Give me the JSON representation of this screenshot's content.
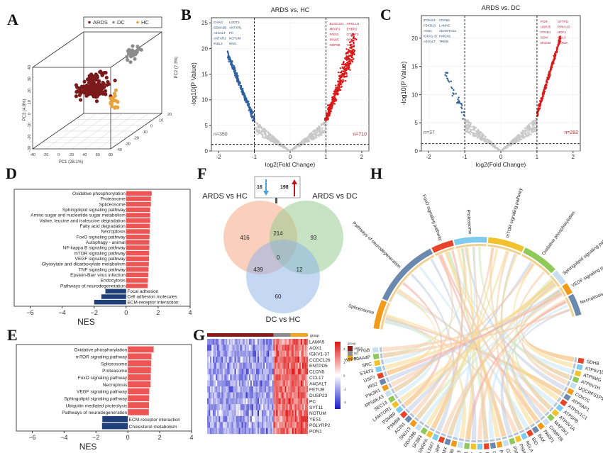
{
  "panels": {
    "A": "A",
    "B": "B",
    "C": "C",
    "D": "D",
    "E": "E",
    "F": "F",
    "G": "G",
    "H": "H"
  },
  "chart_data": [
    {
      "id": "A",
      "type": "scatter",
      "title": "",
      "legend": {
        "placement": "top-right",
        "entries": [
          {
            "name": "ARDS",
            "color": "#7b1a1a"
          },
          {
            "name": "DC",
            "color": "#8c8c8c"
          },
          {
            "name": "HC",
            "color": "#e8a33a"
          }
        ]
      },
      "xlabel": "PC1 (28.1%)",
      "ylabel": "PC3 (4.8%)",
      "zlabel": "PC2 (7.3%)",
      "x_ticks": [
        "-40",
        "-20",
        "0",
        "20",
        "40",
        "60",
        "80"
      ],
      "y_ticks": [
        "-30",
        "-20",
        "-10",
        "0",
        "10",
        "20",
        "30",
        "40"
      ],
      "z_ticks": [
        "-40",
        "-30",
        "-20",
        "-10",
        "0",
        "10",
        "20"
      ],
      "xlim": [
        -40,
        80
      ],
      "ylim": [
        -30,
        40
      ],
      "zlim": [
        -40,
        20
      ],
      "groups": [
        {
          "name": "ARDS",
          "approx_points": 150,
          "center": [
            20,
            10,
            -5
          ]
        },
        {
          "name": "DC",
          "approx_points": 25,
          "center": [
            50,
            30,
            5
          ]
        },
        {
          "name": "HC",
          "approx_points": 15,
          "center": [
            70,
            5,
            -30
          ]
        }
      ]
    },
    {
      "id": "B",
      "type": "scatter",
      "title": "ARDS vs. HC",
      "xlabel": "log2(Fold Change)",
      "ylabel": "-log10(P Value)",
      "xlim": [
        -2.2,
        2.2
      ],
      "ylim": [
        0,
        26
      ],
      "x_ticks": [
        "-2",
        "-1",
        "0",
        "1",
        "2"
      ],
      "y_ticks": [
        "0",
        "5",
        "10",
        "15",
        "20",
        "25"
      ],
      "thresholds": {
        "fc": [
          -1,
          1
        ],
        "p": 1.3
      },
      "counts": {
        "down": "n=350",
        "up": "n=710"
      },
      "colors": {
        "down": "#2e5f9e",
        "up": "#d91a1a",
        "ns": "#c8c8c8"
      },
      "down_labels": [
        "CHAO",
        "LGDT2",
        "SEMA3B",
        "ANTXR1",
        "A4GALT",
        "PC",
        "ANTXR2",
        "NOTUM",
        "INSL3",
        "NNG"
      ],
      "up_labels": [
        "BLOC1S1",
        "ARGLU1",
        "MPAP1",
        "EHBP2",
        "PADI3",
        "GTA2F3",
        "IRS0S",
        "NORS",
        "NOP58",
        "GST7"
      ]
    },
    {
      "id": "C",
      "type": "scatter",
      "title": "ARDS vs. DC",
      "xlabel": "log2(Fold Change)",
      "ylabel": "-log10(P Value)",
      "xlim": [
        -2.2,
        2.2
      ],
      "ylim": [
        0,
        24
      ],
      "x_ticks": [
        "-2",
        "-1",
        "0",
        "1",
        "2"
      ],
      "y_ticks": [
        "0",
        "5",
        "10",
        "15",
        "20"
      ],
      "thresholds": {
        "fc": [
          -1,
          1
        ],
        "p": 1.3
      },
      "counts": {
        "down": "n=37",
        "up": "n=282"
      },
      "colors": {
        "down": "#2e5f9e",
        "up": "#d91a1a",
        "ns": "#c8c8c8"
      },
      "down_labels": [
        "ZC3H14",
        "CDH63",
        "FBXO22",
        "LAMA5",
        "AOX1",
        "ADAMTS13",
        "IGKV1-37",
        "HMGN1",
        "A4GALT",
        "TRIM4"
      ],
      "up_labels": [
        "PGR",
        "SFTPD",
        "USP25",
        "PPKV1D",
        "PPAR1",
        "HDF1",
        "SON",
        "CUL3",
        "BAZ1B",
        "ZBR3A"
      ]
    },
    {
      "id": "D",
      "type": "bar",
      "orientation": "horizontal",
      "xlabel": "NES",
      "xlim": [
        -7,
        4
      ],
      "x_ticks": [
        "-6",
        "-4",
        "-2",
        "0",
        "2",
        "4"
      ],
      "categories": [
        "Oxidative phosphorylation",
        "Proteasome",
        "Spliceosome",
        "Sphingolipid signaling pathway",
        "Amino sugar and nucleotide sugar metabolism",
        "Valine, leucine and isoleucine degradation",
        "Fatty acid degradation",
        "Necroptosis",
        "FoxO signaling pathway",
        "Autophagy - animal",
        "NF-kappa B signaling pathway",
        "mTOR signaling pathway",
        "VEGF signaling pathway",
        "Glyoxylate and dicarboxylate metabolism",
        "TNF signaling pathway",
        "Epstein-Barr virus infection",
        "Endocytosis",
        "Pathways of neurodegeneration",
        "Focal adhesion",
        "Cell adhesion molecules",
        "ECM-receptor interaction"
      ],
      "values": [
        1.6,
        1.55,
        1.55,
        1.5,
        1.5,
        1.5,
        1.48,
        1.47,
        1.46,
        1.45,
        1.45,
        1.44,
        1.43,
        1.42,
        1.4,
        1.38,
        1.36,
        1.35,
        -1.3,
        -1.55,
        -2.0
      ],
      "colors": {
        "positive": "#ee5555",
        "negative": "#1f3f7a"
      }
    },
    {
      "id": "E",
      "type": "bar",
      "orientation": "horizontal",
      "xlabel": "NES",
      "xlim": [
        -7,
        4
      ],
      "x_ticks": [
        "-6",
        "-4",
        "-2",
        "0",
        "2",
        "4"
      ],
      "categories": [
        "Oxidative phosphorylation",
        "mTOR signaling pathway",
        "Spliceosome",
        "Proteasome",
        "FoxO signaling pathway",
        "Necroptosis",
        "VEGF signaling pathway",
        "Sphingolipid signaling pathway",
        "Ubiquitin mediated proteolysis",
        "Pathways of neurodegeneration",
        "ECM-receptor interaction",
        "Cholesterol metabolism"
      ],
      "values": [
        1.62,
        1.48,
        1.46,
        1.45,
        1.44,
        1.43,
        1.35,
        1.34,
        1.33,
        1.32,
        -1.6,
        -1.62
      ],
      "colors": {
        "positive": "#ee5555",
        "negative": "#1f3f7a"
      }
    },
    {
      "id": "F",
      "type": "venn",
      "sets": [
        "ARDS vs HC",
        "ARDS vs DC",
        "DC vs HC"
      ],
      "regions": {
        "ARDS vs HC only": 416,
        "ARDS vs DC only": 93,
        "DC vs HC only": 60,
        "ARDS vs HC & ARDS vs DC": 214,
        "ARDS vs HC & DC vs HC": 439,
        "ARDS vs DC & DC vs HC": 12,
        "all": 0
      },
      "inset": {
        "down": 16,
        "up": 198,
        "down_color": "#4aa3df",
        "up_color": "#c0141a"
      },
      "colors": [
        "#f5a27a",
        "#8dc98a",
        "#8ab0e8"
      ]
    },
    {
      "id": "G",
      "type": "heatmap",
      "rows": [
        "LAMA5",
        "AOX1",
        "IGKV1-37",
        "CCDC126",
        "ENTPD5",
        "CLCN5",
        "CCL17",
        "A4GALT",
        "FETUB",
        "DUSP23",
        "PC",
        "SYT11",
        "NOTUM",
        "YES1",
        "PGLYRP2",
        "PON1"
      ],
      "group_annotation": {
        "label": "group",
        "groups": [
          {
            "name": "ARDS",
            "fraction": 0.66,
            "color": "#8b1a1a"
          },
          {
            "name": "DC",
            "fraction": 0.17,
            "color": "#8c8c8c"
          },
          {
            "name": "HC",
            "fraction": 0.17,
            "color": "#f2a51e"
          }
        ]
      },
      "colorbar": {
        "ticks": [
          "2",
          "1",
          "0",
          "-1",
          "-2"
        ],
        "range": [
          -2.5,
          2.5
        ],
        "low": "#1a1acc",
        "mid": "#ffffff",
        "high": "#dd1111"
      },
      "pattern": "ARDS columns low (blue), DC/HC columns high (red)"
    },
    {
      "id": "H",
      "type": "chord",
      "pathways": [
        {
          "name": "Pathways of neurodegeneration",
          "color": "#6b89ad"
        },
        {
          "name": "FoxO signaling pathway",
          "color": "#e8442a"
        },
        {
          "name": "Proteasome",
          "color": "#7fcbee"
        },
        {
          "name": "mTOR signaling pathway",
          "color": "#f2c12e"
        },
        {
          "name": "Oxidative phosphorylation",
          "color": "#8ec95a"
        },
        {
          "name": "Sphingolipid signaling pathway",
          "color": "#c8dff0"
        },
        {
          "name": "VEGF signaling pathway",
          "color": "#f29a1a"
        },
        {
          "name": "Necroptosis",
          "color": "#6b89ad"
        },
        {
          "name": "Spliceosome",
          "color": "#f29a1a"
        }
      ],
      "genes": [
        "SDHB",
        "ATP6V1D",
        "ATP5MG",
        "ATP6V1H",
        "UQCRFS1P1",
        "COX7C",
        "ATP5AP1",
        "ATP6V1C1",
        "ATP5PB",
        "ATP6V1A",
        "MAP3K1",
        "CHMP2B",
        "PARP1",
        "BAX",
        "BID",
        "RELA",
        "PSMD6",
        "PSMC3",
        "CCT4",
        "PSMC8",
        "CSNK2A1",
        "DCTN2",
        "CSNK2A2",
        "PSMB7",
        "PSMC1",
        "PSMD3",
        "PRPF38B",
        "RBMX",
        "U2SURP",
        "LSM7",
        "SNRPA",
        "SF3B3",
        "DDX39B",
        "SNU13",
        "ACIN1",
        "PSMB8",
        "PSMB9",
        "LAMTOR1",
        "SEC13",
        "RPS6KA3",
        "PIK3R1",
        "IRS2",
        "USP7",
        "STAT3",
        "SRC",
        "HSP90AA4P",
        "PYGB"
      ]
    }
  ]
}
